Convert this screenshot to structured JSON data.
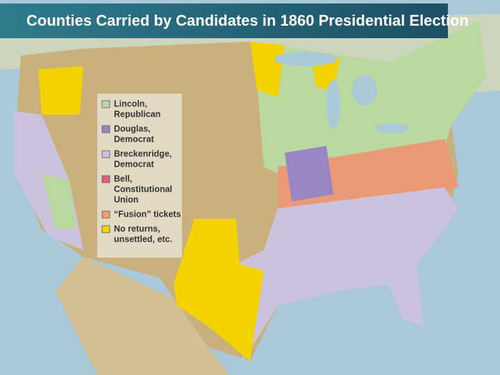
{
  "title": "Counties Carried by Candidates in 1860 Presidential Election",
  "legend": [
    {
      "lines": [
        "Lincoln,",
        "Republican"
      ],
      "color": "#b9d9a0"
    },
    {
      "lines": [
        "Douglas,",
        "Democrat"
      ],
      "color": "#9a86c2"
    },
    {
      "lines": [
        "Breckenridge,",
        "Democrat"
      ],
      "color": "#cbc3de"
    },
    {
      "lines": [
        "Bell,",
        "Constitutional",
        "Union"
      ],
      "color": "#e0607a"
    },
    {
      "lines": [
        "“Fusion” tickets"
      ],
      "color": "#f0a070"
    },
    {
      "lines": [
        "No returns,",
        "unsettled, etc."
      ],
      "color": "#f2d200"
    }
  ]
}
